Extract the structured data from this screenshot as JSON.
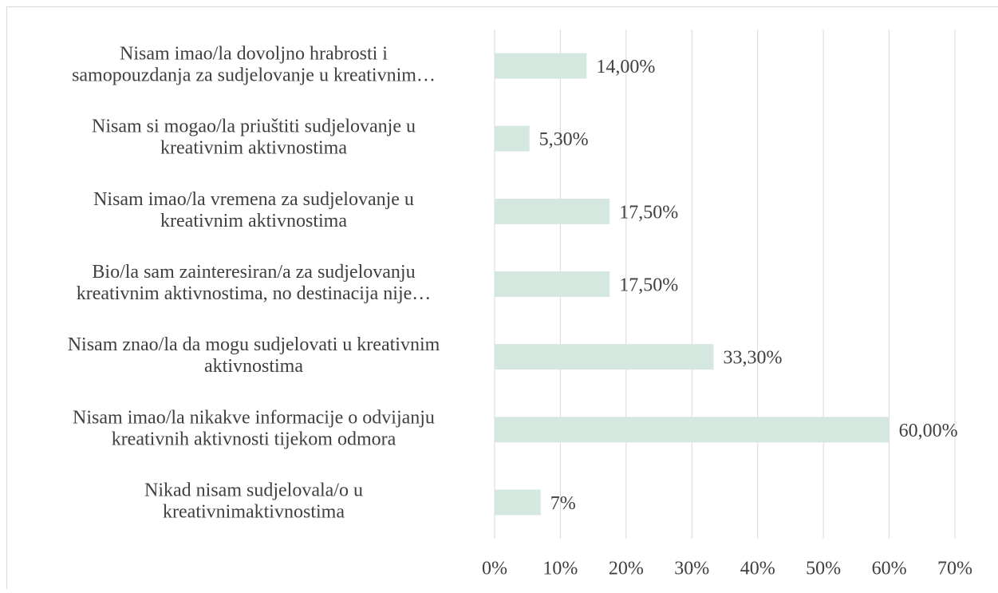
{
  "chart_data": {
    "type": "bar",
    "orientation": "horizontal",
    "categories": [
      [
        "Nisam imao/la dovoljno hrabrosti i",
        "samopouzdanja za sudjelovanje u kreativnim…"
      ],
      [
        "Nisam si mogao/la priuštiti sudjelovanje u",
        "kreativnim aktivnostima"
      ],
      [
        "Nisam imao/la vremena za sudjelovanje u",
        "kreativnim aktivnostima"
      ],
      [
        "Bio/la sam zainteresiran/a za sudjelovanju",
        "kreativnim aktivnostima, no destinacija nije…"
      ],
      [
        "Nisam znao/la da mogu sudjelovati u kreativnim",
        "aktivnostima"
      ],
      [
        "Nisam imao/la nikakve informacije o odvijanju",
        "kreativnih aktivnosti tijekom odmora"
      ],
      [
        "Nikad nisam sudjelovala/o u",
        "kreativnimaktivnostima"
      ]
    ],
    "values": [
      14,
      5.3,
      17.5,
      17.5,
      33.3,
      60,
      7
    ],
    "value_labels": [
      "14,00%",
      "5,30%",
      "17,50%",
      "17,50%",
      "33,30%",
      "60,00%",
      "7%"
    ],
    "color": "#d5e8e0",
    "xlim": [
      0,
      70
    ],
    "xticks": [
      {
        "value": 0,
        "label": "0%"
      },
      {
        "value": 10,
        "label": "10%"
      },
      {
        "value": 20,
        "label": "20%"
      },
      {
        "value": 30,
        "label": "30%"
      },
      {
        "value": 40,
        "label": "40%"
      },
      {
        "value": 50,
        "label": "50%"
      },
      {
        "value": 60,
        "label": "60%"
      },
      {
        "value": 70,
        "label": "70%"
      }
    ],
    "grid": true
  }
}
